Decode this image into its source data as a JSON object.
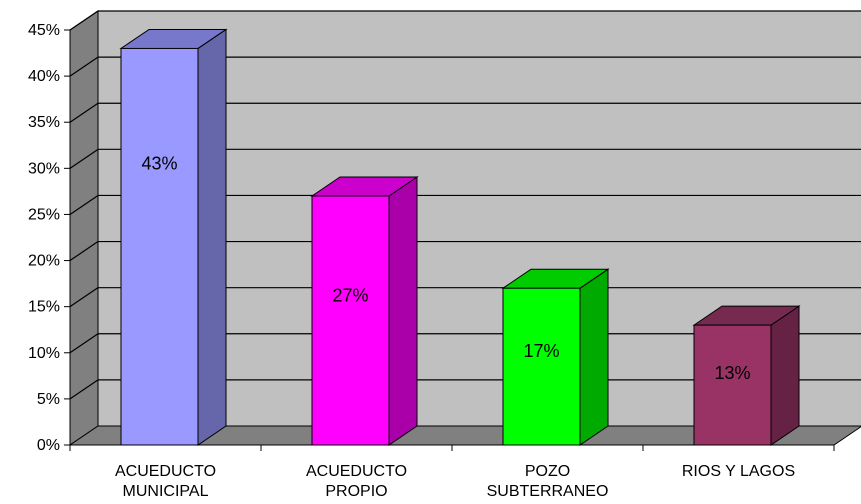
{
  "chart_data": {
    "type": "bar",
    "categories": [
      [
        "ACUEDUCTO",
        "MUNICIPAL"
      ],
      [
        "ACUEDUCTO",
        "PROPIO"
      ],
      [
        "POZO",
        "SUBTERRANEO"
      ],
      [
        "RIOS Y LAGOS"
      ]
    ],
    "values": [
      43,
      27,
      17,
      13
    ],
    "data_labels": [
      "43%",
      "27%",
      "17%",
      "13%"
    ],
    "yticks": [
      "0%",
      "5%",
      "10%",
      "15%",
      "20%",
      "25%",
      "30%",
      "35%",
      "40%",
      "45%"
    ],
    "ylim": [
      0,
      45
    ],
    "grid": true,
    "legend": "none",
    "colors": {
      "wall": "#c0c0c0",
      "side_wall": "#808080",
      "floor": "#808080",
      "bars": [
        {
          "front": "#9999ff",
          "side": "#6666aa",
          "top": "#7777cc"
        },
        {
          "front": "#ff00ff",
          "side": "#aa00aa",
          "top": "#cc00cc"
        },
        {
          "front": "#00ff00",
          "side": "#00aa00",
          "top": "#00cc00"
        },
        {
          "front": "#993366",
          "side": "#662244",
          "top": "#772a50"
        }
      ]
    }
  }
}
